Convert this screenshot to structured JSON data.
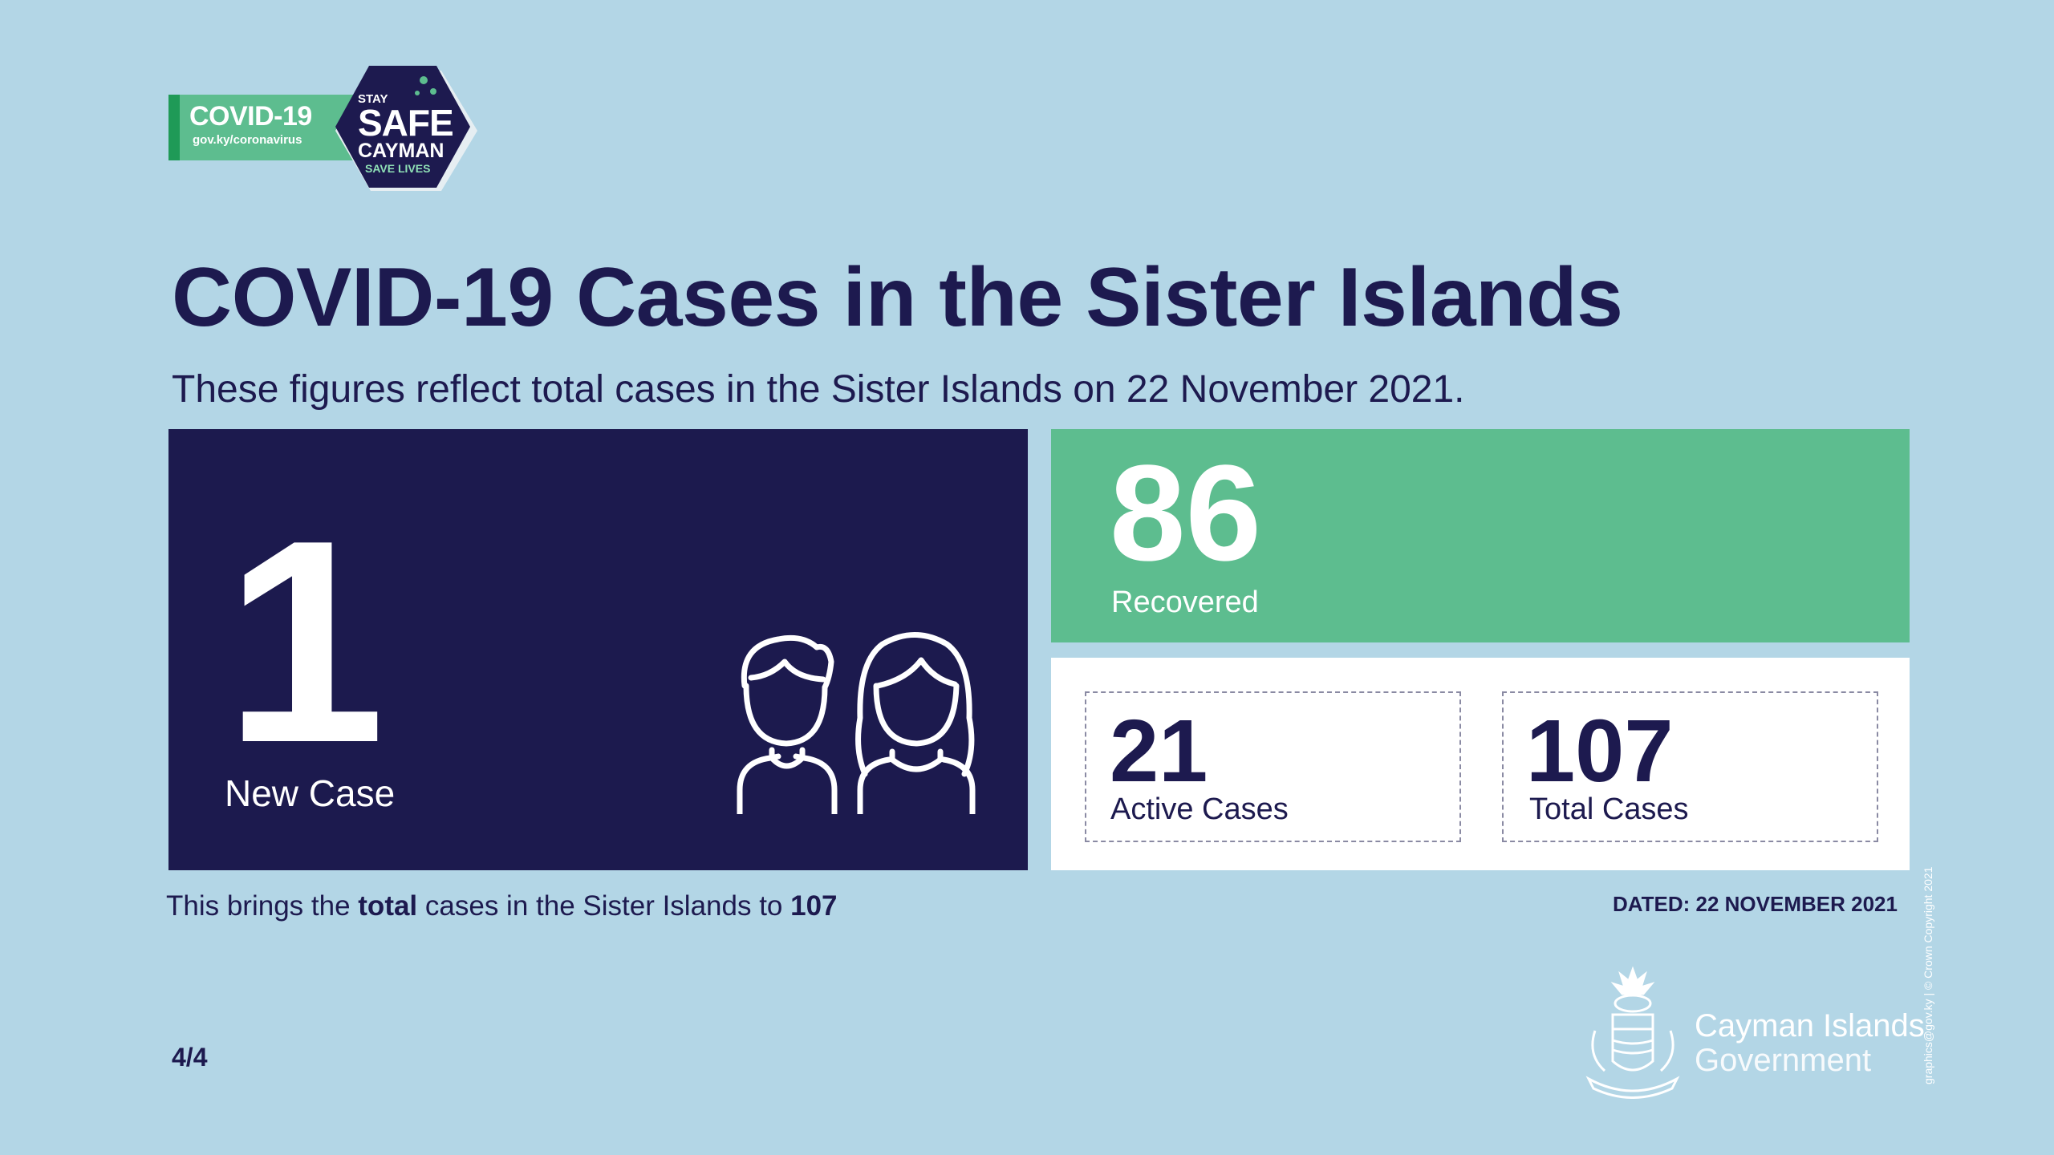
{
  "logo": {
    "covid_label": "COVID-19",
    "url": "gov.ky/coronavirus",
    "stay": "STAY",
    "safe": "SAFE",
    "cayman": "CAYMAN",
    "save_lives": "SAVE LIVES"
  },
  "title": "COVID-19 Cases in the Sister Islands",
  "subtitle": "These figures reflect total cases in the Sister Islands on 22 November 2021.",
  "new_case": {
    "value": "1",
    "label": "New Case"
  },
  "recovered": {
    "value": "86",
    "label": "Recovered"
  },
  "active": {
    "value": "21",
    "label": "Active Cases"
  },
  "total": {
    "value": "107",
    "label": "Total Cases"
  },
  "footer": {
    "brings_pre": "This brings the ",
    "brings_bold": "total",
    "brings_post": " cases in the Sister Islands to ",
    "brings_value": "107",
    "dated": "DATED: 22 NOVEMBER 2021",
    "page": "4/4"
  },
  "government": {
    "name": "Cayman Islands",
    "sub": "Government"
  },
  "copyright": "graphics@gov.ky | © Crown Copyright 2021",
  "colors": {
    "background": "#b3d6e6",
    "navy": "#1c1a4e",
    "green": "#5dbd8f",
    "white": "#ffffff"
  },
  "icons": [
    "people-icon",
    "crest-icon",
    "hexagon-badge-icon"
  ]
}
